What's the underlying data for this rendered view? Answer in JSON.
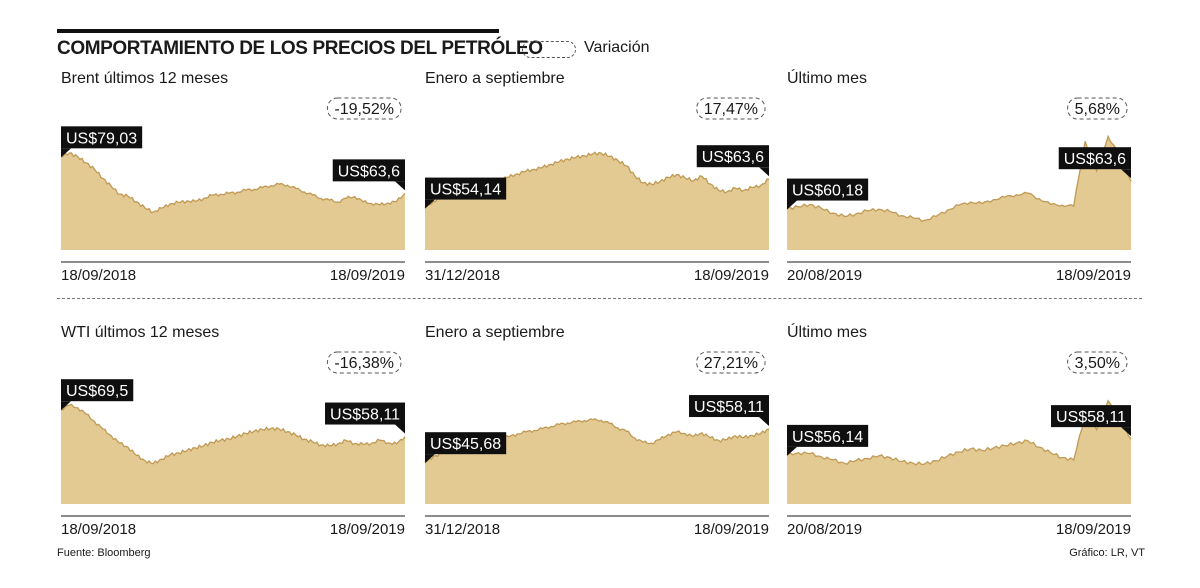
{
  "title": "COMPORTAMIENTO DE LOS PRECIOS DEL PETRÓLEO",
  "legend": {
    "label": "Variación"
  },
  "footer": {
    "source": "Fuente: Bloomberg",
    "credit": "Gráfico: LR, VT"
  },
  "colors": {
    "fill": "#e3c992",
    "edge": "#c09a55",
    "tag": "#0f0f0f"
  },
  "chart_data": [
    {
      "type": "area",
      "title": "Brent últimos 12 meses",
      "start_label": "US$79,03",
      "end_label": "US$63,6",
      "variation": "-19,52%",
      "x_start": "18/09/2018",
      "x_end": "18/09/2019",
      "ylim": [
        40,
        90
      ],
      "values": [
        79.03,
        80.4,
        78.8,
        76.3,
        73.6,
        69.8,
        66.5,
        63.2,
        62.4,
        60.1,
        57.5,
        55.8,
        57.4,
        59.2,
        59.8,
        60.4,
        60.2,
        61.5,
        62.8,
        63.2,
        63.6,
        64.1,
        64.9,
        65.3,
        66.0,
        66.8,
        67.4,
        67.0,
        65.6,
        64.2,
        62.9,
        61.5,
        60.8,
        60.0,
        61.6,
        62.3,
        60.1,
        59.4,
        58.8,
        59.6,
        60.2,
        63.6
      ]
    },
    {
      "type": "area",
      "title": "Enero a septiembre",
      "start_label": "US$54,14",
      "end_label": "US$63,6",
      "variation": "17,47%",
      "x_start": "31/12/2018",
      "x_end": "18/09/2019",
      "ylim": [
        40,
        80
      ],
      "values": [
        54.14,
        56.2,
        57.8,
        58.6,
        59.9,
        60.7,
        61.2,
        61.8,
        62.5,
        63.6,
        64.3,
        65.4,
        66.2,
        66.9,
        67.5,
        68.6,
        69.4,
        70.3,
        70.9,
        71.4,
        72.0,
        72.3,
        71.2,
        69.8,
        68.1,
        64.7,
        62.3,
        61.9,
        62.8,
        64.2,
        65.1,
        64.0,
        63.1,
        64.6,
        62.0,
        59.8,
        59.4,
        60.6,
        59.9,
        60.8,
        61.5,
        63.6
      ]
    },
    {
      "type": "area",
      "title": "Último mes",
      "start_label": "US$60,18",
      "end_label": "US$63,6",
      "variation": "5,68%",
      "x_start": "20/08/2019",
      "x_end": "18/09/2019",
      "ylim": [
        55,
        70
      ],
      "values": [
        60.18,
        60.4,
        60.7,
        60.2,
        59.6,
        59.2,
        59.5,
        59.9,
        60.1,
        59.8,
        59.3,
        59.0,
        58.7,
        59.2,
        60.0,
        60.6,
        61.0,
        60.8,
        61.3,
        61.6,
        61.9,
        62.1,
        61.4,
        60.7,
        60.6,
        60.5,
        68.6,
        64.9,
        69.2,
        66.9,
        63.6
      ]
    },
    {
      "type": "area",
      "title": "WTI últimos 12 meses",
      "start_label": "US$69,5",
      "end_label": "US$58,11",
      "variation": "-16,38%",
      "x_start": "18/09/2018",
      "x_end": "18/09/2019",
      "ylim": [
        30,
        80
      ],
      "values": [
        69.5,
        71.2,
        70.1,
        67.4,
        64.3,
        61.2,
        58.4,
        55.3,
        53.6,
        50.2,
        48.1,
        46.8,
        48.7,
        50.4,
        51.3,
        52.2,
        53.4,
        54.2,
        55.7,
        56.5,
        57.1,
        58.2,
        59.4,
        60.3,
        61.0,
        61.5,
        61.2,
        60.1,
        58.7,
        57.0,
        55.8,
        54.6,
        54.2,
        55.1,
        56.4,
        55.2,
        54.8,
        55.3,
        56.6,
        55.5,
        55.0,
        58.11
      ]
    },
    {
      "type": "area",
      "title": "Enero a septiembre",
      "start_label": "US$45,68",
      "end_label": "US$58,11",
      "variation": "27,21%",
      "x_start": "31/12/2018",
      "x_end": "18/09/2019",
      "ylim": [
        30,
        75
      ],
      "values": [
        45.68,
        47.8,
        48.9,
        49.8,
        51.2,
        51.9,
        52.4,
        53.2,
        53.9,
        54.6,
        55.2,
        56.3,
        57.0,
        57.6,
        58.2,
        59.1,
        59.8,
        60.4,
        60.8,
        61.3,
        61.6,
        61.4,
        60.2,
        58.5,
        57.3,
        54.7,
        53.1,
        52.8,
        54.2,
        56.1,
        57.0,
        56.4,
        55.3,
        56.7,
        54.9,
        53.8,
        54.2,
        55.6,
        54.9,
        55.7,
        56.4,
        58.11
      ]
    },
    {
      "type": "area",
      "title": "Último mes",
      "start_label": "US$56,14",
      "end_label": "US$58,11",
      "variation": "3,50%",
      "x_start": "20/08/2019",
      "x_end": "18/09/2019",
      "ylim": [
        50,
        65
      ],
      "values": [
        56.14,
        56.4,
        56.3,
        55.9,
        55.5,
        55.1,
        55.4,
        55.7,
        56.0,
        55.8,
        55.3,
        55.1,
        55.0,
        55.4,
        56.0,
        56.5,
        56.9,
        56.7,
        57.0,
        57.3,
        57.6,
        57.9,
        57.1,
        56.4,
        55.8,
        55.5,
        61.1,
        59.3,
        62.9,
        60.9,
        58.11
      ]
    }
  ]
}
